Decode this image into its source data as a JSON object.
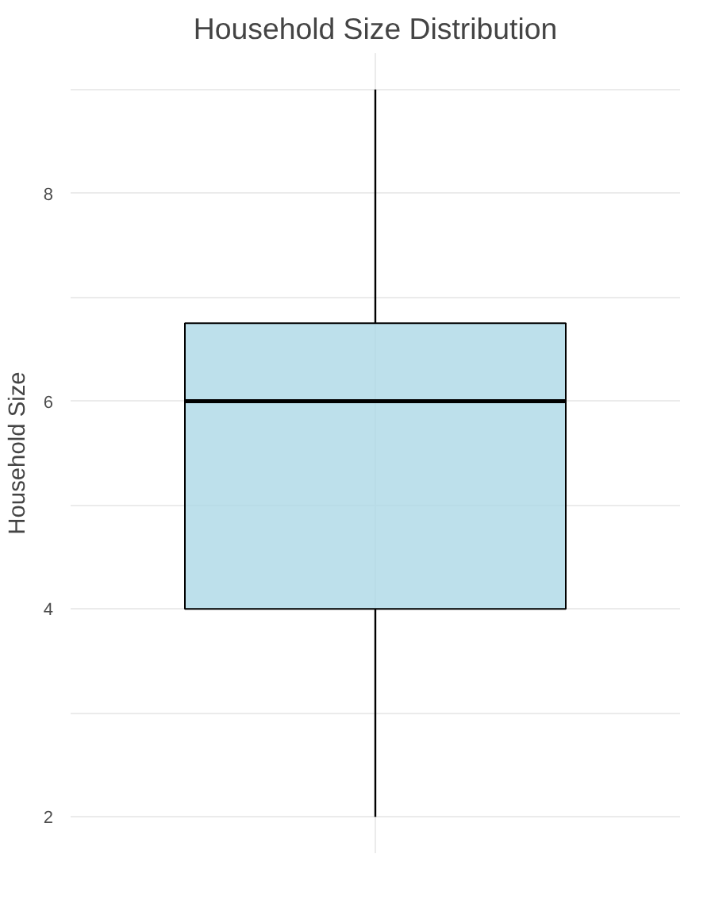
{
  "chart_data": {
    "type": "box",
    "title": "Household Size Distribution",
    "ylabel": "Household Size",
    "categories": [
      null
    ],
    "boxes": [
      {
        "low": 2,
        "q1": 4,
        "median": 6,
        "q3": 6.75,
        "high": 9
      }
    ],
    "color": "#add8e6",
    "ylim": [
      1.65,
      9.35
    ],
    "yticks": [
      {
        "value": 2,
        "label": "2"
      },
      {
        "value": 3,
        "label": null
      },
      {
        "value": 4,
        "label": "4"
      },
      {
        "value": 5,
        "label": null
      },
      {
        "value": 6,
        "label": "6"
      },
      {
        "value": 7,
        "label": null
      },
      {
        "value": 8,
        "label": "8"
      },
      {
        "value": 9,
        "label": null
      }
    ],
    "grid": true
  }
}
